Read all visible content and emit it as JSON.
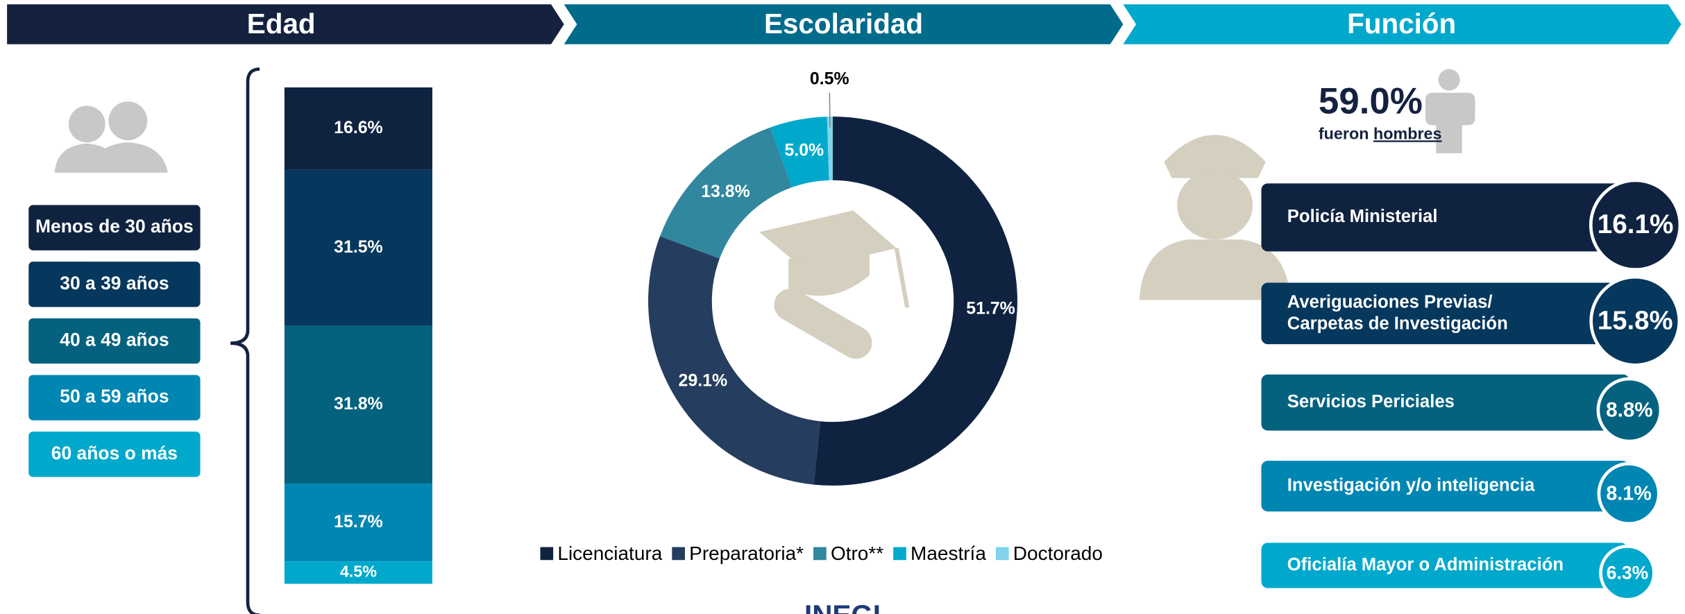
{
  "chart_data": [
    {
      "type": "stacked_bar",
      "title": "Edad",
      "categories": [
        "Menos de 30 años",
        "30 a 39 años",
        "40 a 49 años",
        "50 a 59 años",
        "60 años o más"
      ],
      "values": [
        16.6,
        31.5,
        31.8,
        15.7,
        4.5
      ],
      "value_labels": [
        "16.6%",
        "31.5%",
        "31.8%",
        "15.7%",
        "4.5%"
      ],
      "colors": [
        "#0f2341",
        "#06375c",
        "#04627f",
        "#0086b3",
        "#00a9cc"
      ]
    },
    {
      "type": "donut",
      "title": "Escolaridad",
      "categories": [
        "Licenciatura",
        "Preparatoria*",
        "Otro**",
        "Maestría",
        "Doctorado"
      ],
      "values": [
        51.7,
        29.1,
        13.8,
        5.0,
        0.5
      ],
      "value_labels": [
        "51.7%",
        "29.1%",
        "13.8%",
        "5.0%",
        "0.5%"
      ],
      "colors": [
        "#0f2341",
        "#253d5e",
        "#31879e",
        "#00a9cc",
        "#7fd3ea"
      ],
      "logo": "INEGI"
    },
    {
      "type": "ranked_list",
      "title": "Función",
      "annotation": {
        "value": 59.0,
        "label": "59.0%"
      },
      "annotation_text": "fueron",
      "annotation_link": "hombres",
      "categories": [
        "Policía Ministerial",
        "Averiguaciones Previas/\nCarpetas de Investigación",
        "Servicios Periciales",
        "Investigación y/o inteligencia",
        "Oficialía Mayor o Administración"
      ],
      "values": [
        16.1,
        15.8,
        8.8,
        8.1,
        6.3
      ],
      "value_labels": [
        "16.1%",
        "15.8%",
        "8.8%",
        "8.1%",
        "6.3%"
      ],
      "colors": [
        "#0f2341",
        "#06375c",
        "#04627f",
        "#0086b3",
        "#00a9cc"
      ]
    }
  ]
}
